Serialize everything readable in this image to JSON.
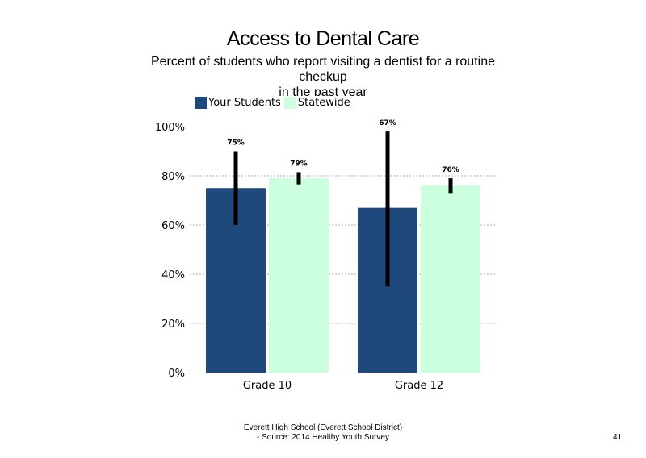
{
  "chart_data": {
    "type": "bar",
    "title": "Access to Dental Care",
    "subtitle_lines": [
      "Percent of students who report visiting a dentist for a routine",
      "checkup",
      "in the past year"
    ],
    "categories": [
      "Grade 10",
      "Grade 12"
    ],
    "series": [
      {
        "name": "Your Students",
        "color": "#1F497D",
        "values": [
          75,
          67
        ],
        "labels": [
          "75%",
          "67%"
        ],
        "error_low": [
          60,
          35
        ],
        "error_high": [
          90,
          98
        ]
      },
      {
        "name": "Statewide",
        "color": "#CCFFDD",
        "values": [
          79,
          76
        ],
        "labels": [
          "79%",
          "76%"
        ],
        "error_low": [
          76.5,
          73
        ],
        "error_high": [
          81.5,
          79
        ]
      }
    ],
    "ylim": [
      0,
      100
    ],
    "yticks": [
      0,
      20,
      40,
      60,
      80,
      100
    ],
    "ytick_labels": [
      "0%",
      "20%",
      "40%",
      "60%",
      "80%",
      "100%"
    ],
    "xlabel": "",
    "ylabel": "",
    "grid": true,
    "legend_position": "top-left",
    "error_bar_color": "#000000",
    "grid_color": "#B0B0B0",
    "axis_color": "#808080"
  },
  "footer": {
    "line1": "Everett High School (Everett School District)",
    "line2": "- Source: 2014 Healthy Youth Survey"
  },
  "page_number": "41"
}
